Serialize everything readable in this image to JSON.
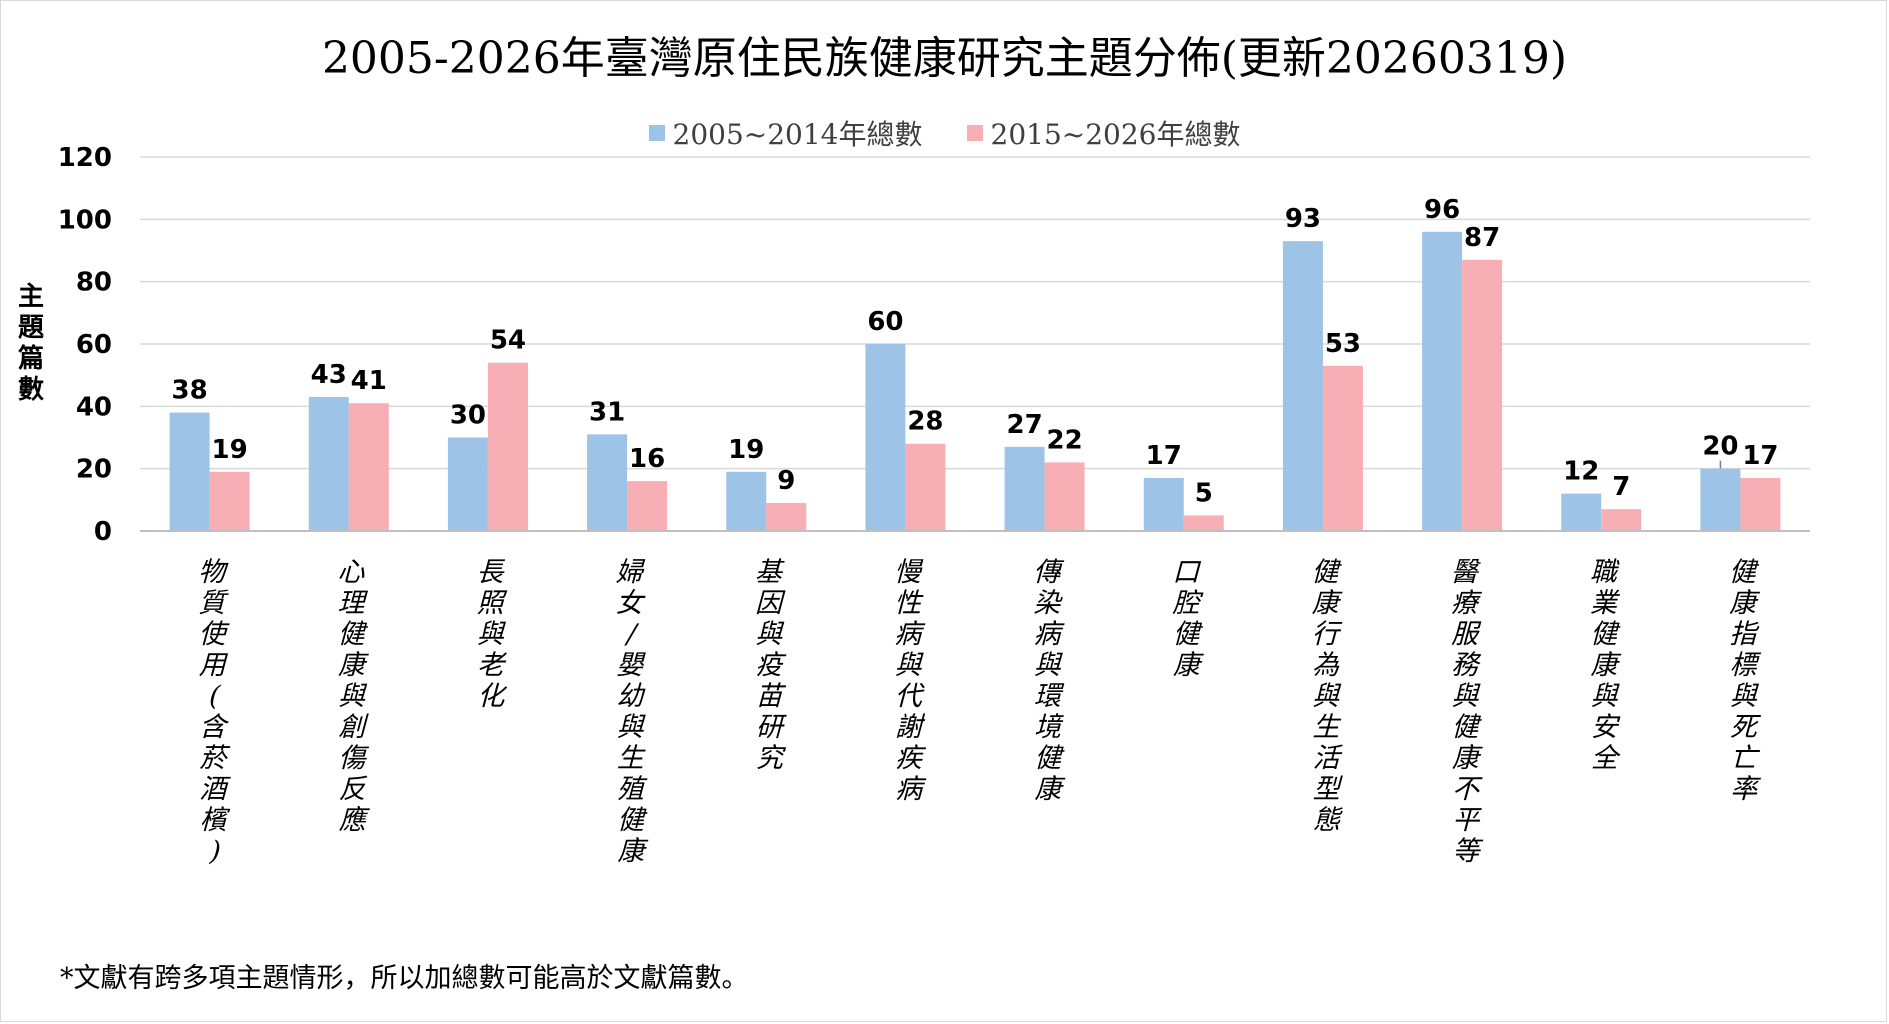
{
  "chart_data": {
    "type": "bar",
    "title": "2005-2026年臺灣原住民族健康研究主題分佈(更新20260319)",
    "ylabel": "主題篇數",
    "xlabel": "",
    "ylim": [
      0,
      120
    ],
    "yticks": [
      0,
      20,
      40,
      60,
      80,
      100,
      120
    ],
    "grid": true,
    "legend_position": "top",
    "categories": [
      "物質使用(含菸酒檳)",
      "心理健康與創傷反應",
      "長照與老化",
      "婦女/嬰幼與生殖健康",
      "基因與疫苗研究",
      "慢性病與代謝疾病",
      "傳染病與環境健康",
      "口腔健康",
      "健康行為與生活型態",
      "醫療服務與健康不平等",
      "職業健康與安全",
      "健康指標與死亡率"
    ],
    "series": [
      {
        "name": "2005~2014年總數",
        "color": "#9dc3e6",
        "values": [
          38,
          43,
          30,
          31,
          19,
          60,
          27,
          17,
          93,
          96,
          12,
          20
        ]
      },
      {
        "name": "2015~2026年總數",
        "color": "#f8aeb5",
        "values": [
          19,
          41,
          54,
          16,
          9,
          28,
          22,
          5,
          53,
          87,
          7,
          17
        ]
      }
    ]
  },
  "footnote": "*文獻有跨多項主題情形，所以加總數可能高於文獻篇數。"
}
